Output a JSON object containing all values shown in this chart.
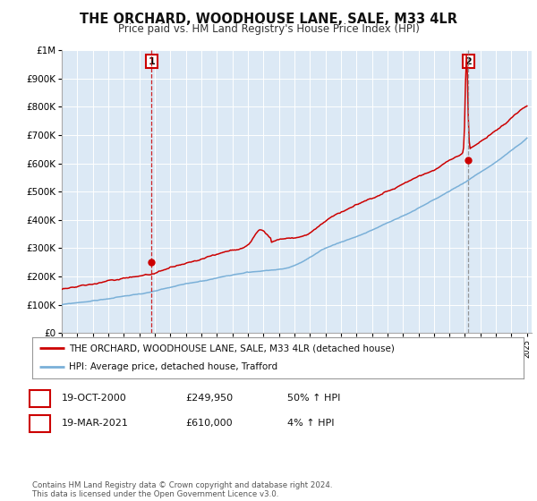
{
  "title": "THE ORCHARD, WOODHOUSE LANE, SALE, M33 4LR",
  "subtitle": "Price paid vs. HM Land Registry's House Price Index (HPI)",
  "ylim": [
    0,
    1000000
  ],
  "yticks": [
    0,
    100000,
    200000,
    300000,
    400000,
    500000,
    600000,
    700000,
    800000,
    900000,
    1000000
  ],
  "ytick_labels": [
    "£0",
    "£100K",
    "£200K",
    "£300K",
    "£400K",
    "£500K",
    "£600K",
    "£700K",
    "£800K",
    "£900K",
    "£1M"
  ],
  "x_start_year": 1995,
  "x_end_year": 2025,
  "hpi_color": "#7ab0d8",
  "price_color": "#cc0000",
  "plot_bg_color": "#dce9f5",
  "grid_color": "#ffffff",
  "marker1_year": 2000.8,
  "marker1_value": 249950,
  "marker2_year": 2021.22,
  "marker2_value": 610000,
  "vline1_year": 2000.8,
  "vline2_year": 2021.22,
  "legend_label_red": "THE ORCHARD, WOODHOUSE LANE, SALE, M33 4LR (detached house)",
  "legend_label_blue": "HPI: Average price, detached house, Trafford",
  "table_row1": [
    "1",
    "19-OCT-2000",
    "£249,950",
    "50% ↑ HPI"
  ],
  "table_row2": [
    "2",
    "19-MAR-2021",
    "£610,000",
    "4% ↑ HPI"
  ],
  "footer": "Contains HM Land Registry data © Crown copyright and database right 2024.\nThis data is licensed under the Open Government Licence v3.0.",
  "title_fontsize": 10.5,
  "subtitle_fontsize": 8.5,
  "tick_fontsize": 7.5
}
